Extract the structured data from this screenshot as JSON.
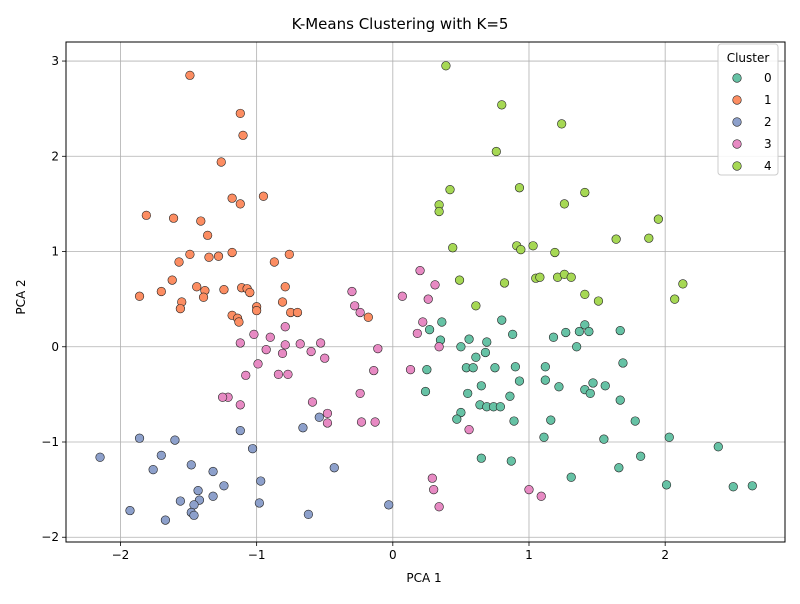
{
  "chart_data": {
    "type": "scatter",
    "title": "K-Means Clustering with K=5",
    "xlabel": "PCA 1",
    "ylabel": "PCA 2",
    "xlim": [
      -2.4,
      2.88
    ],
    "ylim": [
      -2.05,
      3.2
    ],
    "xticks": [
      -2,
      -1,
      0,
      1,
      2
    ],
    "yticks": [
      -2,
      -1,
      0,
      1,
      2,
      3
    ],
    "xtick_labels": [
      "−2",
      "−1",
      "0",
      "1",
      "2"
    ],
    "ytick_labels": [
      "−2",
      "−1",
      "0",
      "1",
      "2",
      "3"
    ],
    "grid": true,
    "legend": {
      "title": "Cluster",
      "placement": "top-right"
    },
    "series": [
      {
        "name": "0",
        "color": "#66c2a5",
        "points": [
          [
            0.25,
            -0.24
          ],
          [
            0.24,
            -0.47
          ],
          [
            0.27,
            0.18
          ],
          [
            0.36,
            0.26
          ],
          [
            0.35,
            0.07
          ],
          [
            0.5,
            0.0
          ],
          [
            0.56,
            0.08
          ],
          [
            0.69,
            0.05
          ],
          [
            0.8,
            0.28
          ],
          [
            0.88,
            0.13
          ],
          [
            0.68,
            -0.06
          ],
          [
            0.61,
            -0.11
          ],
          [
            0.54,
            -0.22
          ],
          [
            0.59,
            -0.22
          ],
          [
            0.75,
            -0.22
          ],
          [
            0.9,
            -0.21
          ],
          [
            0.65,
            -0.41
          ],
          [
            0.55,
            -0.49
          ],
          [
            0.86,
            -0.52
          ],
          [
            0.93,
            -0.36
          ],
          [
            0.64,
            -0.61
          ],
          [
            0.69,
            -0.63
          ],
          [
            0.74,
            -0.63
          ],
          [
            0.79,
            -0.63
          ],
          [
            0.5,
            -0.69
          ],
          [
            0.47,
            -0.76
          ],
          [
            0.89,
            -0.78
          ],
          [
            1.12,
            -0.21
          ],
          [
            1.12,
            -0.35
          ],
          [
            1.22,
            -0.42
          ],
          [
            1.18,
            0.1
          ],
          [
            1.27,
            0.15
          ],
          [
            1.37,
            0.16
          ],
          [
            1.41,
            0.23
          ],
          [
            1.44,
            0.16
          ],
          [
            1.35,
            0.0
          ],
          [
            1.41,
            -0.45
          ],
          [
            1.45,
            -0.49
          ],
          [
            1.47,
            -0.38
          ],
          [
            1.56,
            -0.41
          ],
          [
            1.67,
            0.17
          ],
          [
            1.69,
            -0.17
          ],
          [
            1.67,
            -0.56
          ],
          [
            1.78,
            -0.78
          ],
          [
            1.16,
            -0.77
          ],
          [
            1.11,
            -0.95
          ],
          [
            1.55,
            -0.97
          ],
          [
            0.65,
            -1.17
          ],
          [
            0.87,
            -1.2
          ],
          [
            1.31,
            -1.37
          ],
          [
            1.66,
            -1.27
          ],
          [
            1.82,
            -1.15
          ],
          [
            2.03,
            -0.95
          ],
          [
            2.39,
            -1.05
          ],
          [
            2.01,
            -1.45
          ],
          [
            2.5,
            -1.47
          ],
          [
            2.64,
            -1.46
          ]
        ]
      },
      {
        "name": "1",
        "color": "#fc8d62",
        "points": [
          [
            -1.49,
            2.85
          ],
          [
            -1.12,
            2.45
          ],
          [
            -1.1,
            2.22
          ],
          [
            -1.26,
            1.94
          ],
          [
            -0.95,
            1.58
          ],
          [
            -1.18,
            1.56
          ],
          [
            -1.12,
            1.5
          ],
          [
            -1.81,
            1.38
          ],
          [
            -1.61,
            1.35
          ],
          [
            -1.41,
            1.32
          ],
          [
            -1.36,
            1.17
          ],
          [
            -1.18,
            0.99
          ],
          [
            -0.76,
            0.97
          ],
          [
            -1.49,
            0.97
          ],
          [
            -1.28,
            0.95
          ],
          [
            -1.35,
            0.94
          ],
          [
            -1.57,
            0.89
          ],
          [
            -0.87,
            0.89
          ],
          [
            -1.62,
            0.7
          ],
          [
            -1.44,
            0.63
          ],
          [
            -0.79,
            0.63
          ],
          [
            -1.11,
            0.62
          ],
          [
            -1.24,
            0.6
          ],
          [
            -1.07,
            0.61
          ],
          [
            -1.38,
            0.59
          ],
          [
            -1.05,
            0.57
          ],
          [
            -1.7,
            0.58
          ],
          [
            -1.86,
            0.53
          ],
          [
            -1.39,
            0.52
          ],
          [
            -1.55,
            0.47
          ],
          [
            -0.81,
            0.47
          ],
          [
            -1.56,
            0.4
          ],
          [
            -1.0,
            0.42
          ],
          [
            -1.0,
            0.38
          ],
          [
            -0.75,
            0.36
          ],
          [
            -0.7,
            0.36
          ],
          [
            -1.18,
            0.33
          ],
          [
            -1.14,
            0.3
          ],
          [
            -1.13,
            0.26
          ],
          [
            -0.18,
            0.31
          ]
        ]
      },
      {
        "name": "2",
        "color": "#8da0cb",
        "points": [
          [
            -2.15,
            -1.16
          ],
          [
            -1.86,
            -0.96
          ],
          [
            -1.6,
            -0.98
          ],
          [
            -1.7,
            -1.14
          ],
          [
            -1.48,
            -1.24
          ],
          [
            -1.76,
            -1.29
          ],
          [
            -1.32,
            -1.31
          ],
          [
            -1.12,
            -0.88
          ],
          [
            -1.03,
            -1.07
          ],
          [
            -0.97,
            -1.41
          ],
          [
            -1.24,
            -1.46
          ],
          [
            -1.43,
            -1.51
          ],
          [
            -1.42,
            -1.61
          ],
          [
            -1.56,
            -1.62
          ],
          [
            -1.46,
            -1.66
          ],
          [
            -1.32,
            -1.57
          ],
          [
            -1.48,
            -1.74
          ],
          [
            -1.46,
            -1.77
          ],
          [
            -1.67,
            -1.82
          ],
          [
            -1.93,
            -1.72
          ],
          [
            -0.98,
            -1.64
          ],
          [
            -0.66,
            -0.85
          ],
          [
            -0.54,
            -0.74
          ],
          [
            -0.43,
            -1.27
          ],
          [
            -0.62,
            -1.76
          ],
          [
            -0.03,
            -1.66
          ]
        ]
      },
      {
        "name": "3",
        "color": "#e78ac3",
        "points": [
          [
            0.2,
            0.8
          ],
          [
            0.31,
            0.65
          ],
          [
            -0.3,
            0.58
          ],
          [
            0.07,
            0.53
          ],
          [
            0.26,
            0.5
          ],
          [
            -0.28,
            0.43
          ],
          [
            -0.24,
            0.36
          ],
          [
            -0.79,
            0.21
          ],
          [
            -0.9,
            0.1
          ],
          [
            0.18,
            0.14
          ],
          [
            0.22,
            0.26
          ],
          [
            -1.02,
            0.13
          ],
          [
            -1.12,
            0.04
          ],
          [
            -0.79,
            0.02
          ],
          [
            -0.68,
            0.03
          ],
          [
            -0.53,
            0.04
          ],
          [
            -0.11,
            -0.02
          ],
          [
            -0.93,
            -0.03
          ],
          [
            -0.6,
            -0.05
          ],
          [
            -0.81,
            -0.07
          ],
          [
            -0.5,
            -0.12
          ],
          [
            -0.99,
            -0.18
          ],
          [
            -0.14,
            -0.25
          ],
          [
            0.13,
            -0.24
          ],
          [
            -0.84,
            -0.29
          ],
          [
            -0.77,
            -0.29
          ],
          [
            -1.08,
            -0.3
          ],
          [
            -0.24,
            -0.49
          ],
          [
            -1.21,
            -0.53
          ],
          [
            -1.25,
            -0.53
          ],
          [
            -0.59,
            -0.58
          ],
          [
            -1.12,
            -0.61
          ],
          [
            -0.48,
            -0.7
          ],
          [
            -0.48,
            -0.8
          ],
          [
            -0.23,
            -0.79
          ],
          [
            -0.13,
            -0.79
          ],
          [
            0.34,
            0.0
          ],
          [
            0.56,
            -0.87
          ],
          [
            1.0,
            -1.5
          ],
          [
            1.09,
            -1.57
          ],
          [
            0.29,
            -1.38
          ],
          [
            0.3,
            -1.5
          ],
          [
            0.34,
            -1.68
          ]
        ]
      },
      {
        "name": "4",
        "color": "#a6d854",
        "points": [
          [
            0.39,
            2.95
          ],
          [
            0.8,
            2.54
          ],
          [
            1.24,
            2.34
          ],
          [
            0.76,
            2.05
          ],
          [
            0.93,
            1.67
          ],
          [
            0.42,
            1.65
          ],
          [
            1.41,
            1.62
          ],
          [
            0.34,
            1.49
          ],
          [
            0.34,
            1.42
          ],
          [
            1.26,
            1.5
          ],
          [
            1.95,
            1.34
          ],
          [
            1.64,
            1.13
          ],
          [
            1.88,
            1.14
          ],
          [
            0.44,
            1.04
          ],
          [
            0.91,
            1.06
          ],
          [
            1.03,
            1.06
          ],
          [
            0.94,
            1.02
          ],
          [
            1.19,
            0.99
          ],
          [
            1.05,
            0.72
          ],
          [
            1.08,
            0.73
          ],
          [
            1.21,
            0.73
          ],
          [
            1.26,
            0.76
          ],
          [
            1.31,
            0.73
          ],
          [
            0.49,
            0.7
          ],
          [
            0.82,
            0.67
          ],
          [
            2.13,
            0.66
          ],
          [
            1.41,
            0.55
          ],
          [
            1.51,
            0.48
          ],
          [
            2.07,
            0.5
          ],
          [
            0.61,
            0.43
          ]
        ]
      }
    ]
  }
}
